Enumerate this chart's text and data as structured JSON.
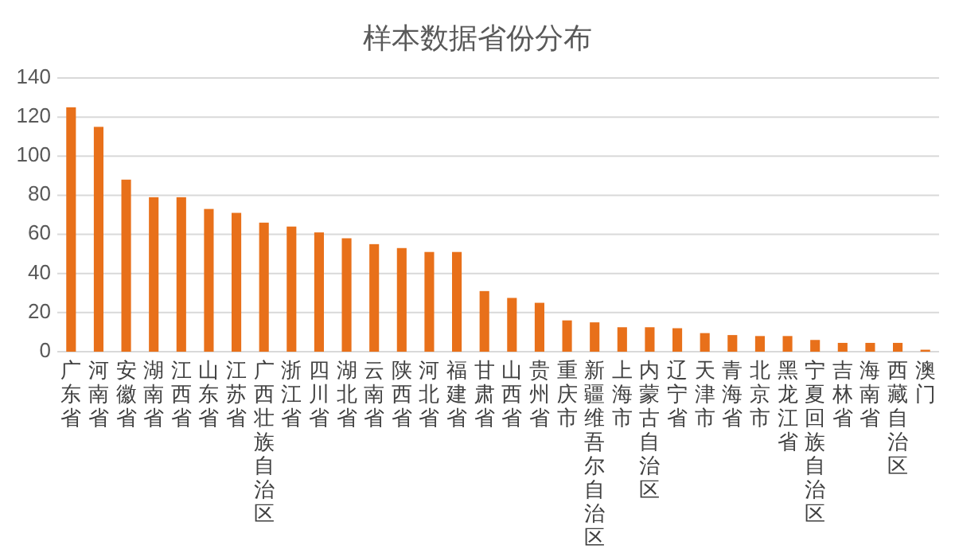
{
  "chart_data": {
    "type": "bar",
    "title": "样本数据省份分布",
    "categories": [
      "广东省",
      "河南省",
      "安徽省",
      "湖南省",
      "江西省",
      "山东省",
      "江苏省",
      "广西壮族自治区",
      "浙江省",
      "四川省",
      "湖北省",
      "云南省",
      "陕西省",
      "河北省",
      "福建省",
      "甘肃省",
      "山西省",
      "贵州省",
      "重庆市",
      "新疆维吾尔自治区",
      "上海市",
      "内蒙古自治区",
      "辽宁省",
      "天津市",
      "青海省",
      "北京市",
      "黑龙江省",
      "宁夏回族自治区",
      "吉林省",
      "海南省",
      "西藏自治区",
      "澳门"
    ],
    "values": [
      125,
      115,
      88,
      79,
      79,
      73,
      71,
      66,
      64,
      61,
      58,
      55,
      53,
      51,
      51,
      31,
      27.5,
      25,
      16,
      15,
      12.5,
      12.5,
      12,
      9.5,
      8.5,
      8,
      8,
      6,
      4.5,
      4.5,
      4.5,
      1
    ],
    "color": "#e8701a",
    "ylim": [
      0,
      140
    ],
    "yticks": [
      0,
      20,
      40,
      60,
      80,
      100,
      120,
      140
    ],
    "grid": "y"
  }
}
